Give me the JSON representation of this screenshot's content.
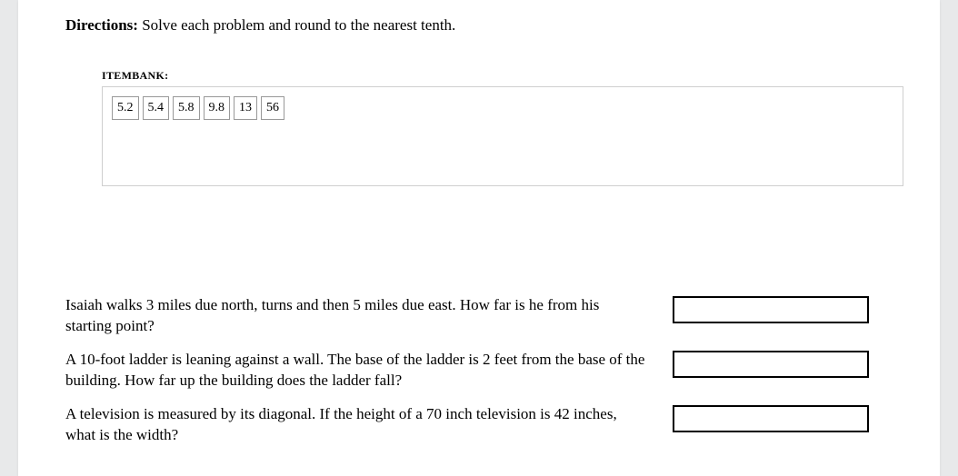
{
  "directions": {
    "label": "Directions:",
    "text": " Solve each problem and round to the nearest tenth."
  },
  "itembank": {
    "label": "ITEMBANK:",
    "items": [
      "5.2",
      "5.4",
      "5.8",
      "9.8",
      "13",
      "56"
    ]
  },
  "questions": [
    {
      "text": "Isaiah walks 3 miles due north, turns and then 5 miles due east. How far is he from his starting point?"
    },
    {
      "text": "A 10-foot ladder is leaning against a wall. The base of the ladder is 2 feet from the base of the building. How far up the building does the ladder fall?"
    },
    {
      "text": "A television is measured by its diagonal. If the height of a 70 inch television is 42 inches, what is the width?"
    }
  ],
  "colors": {
    "page_bg": "#ffffff",
    "body_bg": "#e8e9ea",
    "item_border": "#999999",
    "bank_border": "#cfcfcf",
    "dropbox_border": "#000000",
    "text": "#000000"
  }
}
